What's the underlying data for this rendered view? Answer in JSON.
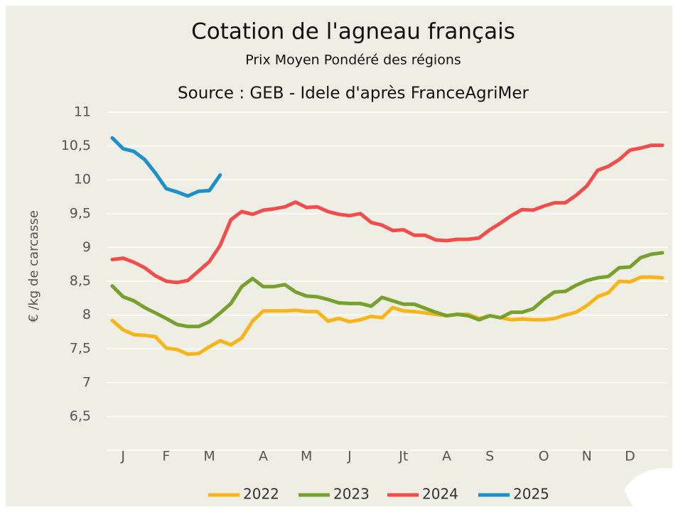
{
  "chart_data": {
    "type": "line",
    "title": "Cotation de l'agneau français",
    "subtitle": "Prix Moyen Pondéré des régions",
    "source": "Source : GEB - Idele d'après FranceAgriMer",
    "y_label": "€ /kg de carcasse",
    "categories": [
      null,
      "J",
      null,
      null,
      null,
      "F",
      null,
      null,
      null,
      "M",
      null,
      null,
      null,
      null,
      "A",
      null,
      null,
      null,
      "M",
      null,
      null,
      null,
      "J",
      null,
      null,
      null,
      null,
      "Jt",
      null,
      null,
      null,
      "A",
      null,
      null,
      null,
      "S",
      null,
      null,
      null,
      null,
      "O",
      null,
      null,
      null,
      "N",
      null,
      null,
      null,
      "D",
      null,
      null,
      null
    ],
    "ylim": [
      6,
      11
    ],
    "yticks": [
      {
        "value": 6.5,
        "label": "6,5"
      },
      7,
      {
        "value": 7.5,
        "label": "7,5"
      },
      8,
      {
        "value": 8.5,
        "label": "8,5"
      },
      9,
      {
        "value": 9.5,
        "label": "9,5"
      },
      10,
      {
        "value": 10.5,
        "label": "10,5"
      },
      11
    ],
    "grid": true,
    "legend": "bottom",
    "series": [
      {
        "name": "2022",
        "color": "#f9b418",
        "values": [
          7.92,
          7.78,
          7.71,
          7.7,
          7.68,
          7.51,
          7.49,
          7.42,
          7.43,
          7.53,
          7.62,
          7.56,
          7.66,
          7.91,
          8.06,
          8.06,
          8.06,
          8.07,
          8.05,
          8.05,
          7.91,
          7.95,
          7.9,
          7.93,
          7.98,
          7.96,
          8.11,
          8.06,
          8.05,
          8.03,
          8.01,
          7.99,
          8.01,
          8.01,
          7.95,
          7.99,
          7.96,
          7.93,
          7.94,
          7.93,
          7.93,
          7.95,
          8.0,
          8.04,
          8.14,
          8.27,
          8.33,
          8.5,
          8.49,
          8.56,
          8.56,
          8.55
        ]
      },
      {
        "name": "2023",
        "color": "#77a02e",
        "values": [
          8.43,
          8.27,
          8.21,
          8.11,
          8.03,
          7.95,
          7.86,
          7.83,
          7.83,
          7.9,
          8.03,
          8.17,
          8.42,
          8.54,
          8.42,
          8.42,
          8.45,
          8.34,
          8.28,
          8.27,
          8.23,
          8.18,
          8.17,
          8.17,
          8.13,
          8.26,
          8.21,
          8.16,
          8.16,
          8.1,
          8.04,
          7.99,
          8.01,
          7.99,
          7.93,
          7.99,
          7.96,
          8.04,
          8.04,
          8.09,
          8.23,
          8.34,
          8.35,
          8.44,
          8.51,
          8.55,
          8.57,
          8.7,
          8.71,
          8.85,
          8.9,
          8.92
        ]
      },
      {
        "name": "2024",
        "color": "#f24c4c",
        "values": [
          8.82,
          8.84,
          8.78,
          8.7,
          8.58,
          8.5,
          8.48,
          8.51,
          8.65,
          8.79,
          9.03,
          9.41,
          9.53,
          9.49,
          9.55,
          9.57,
          9.6,
          9.67,
          9.59,
          9.6,
          9.53,
          9.49,
          9.47,
          9.5,
          9.37,
          9.33,
          9.25,
          9.26,
          9.18,
          9.18,
          9.11,
          9.1,
          9.12,
          9.12,
          9.14,
          9.26,
          9.36,
          9.47,
          9.56,
          9.55,
          9.61,
          9.66,
          9.66,
          9.77,
          9.91,
          10.14,
          10.2,
          10.3,
          10.44,
          10.47,
          10.51,
          10.51
        ]
      },
      {
        "name": "2025",
        "color": "#1e90c8",
        "values": [
          10.62,
          10.46,
          10.42,
          10.3,
          10.1,
          9.87,
          9.82,
          9.76,
          9.83,
          9.84,
          10.07,
          null,
          null,
          null,
          null,
          null,
          null,
          null,
          null,
          null,
          null,
          null,
          null,
          null,
          null,
          null,
          null,
          null,
          null,
          null,
          null,
          null,
          null,
          null,
          null,
          null,
          null,
          null,
          null,
          null,
          null,
          null,
          null,
          null,
          null,
          null,
          null,
          null,
          null,
          null,
          null,
          null
        ]
      }
    ]
  }
}
